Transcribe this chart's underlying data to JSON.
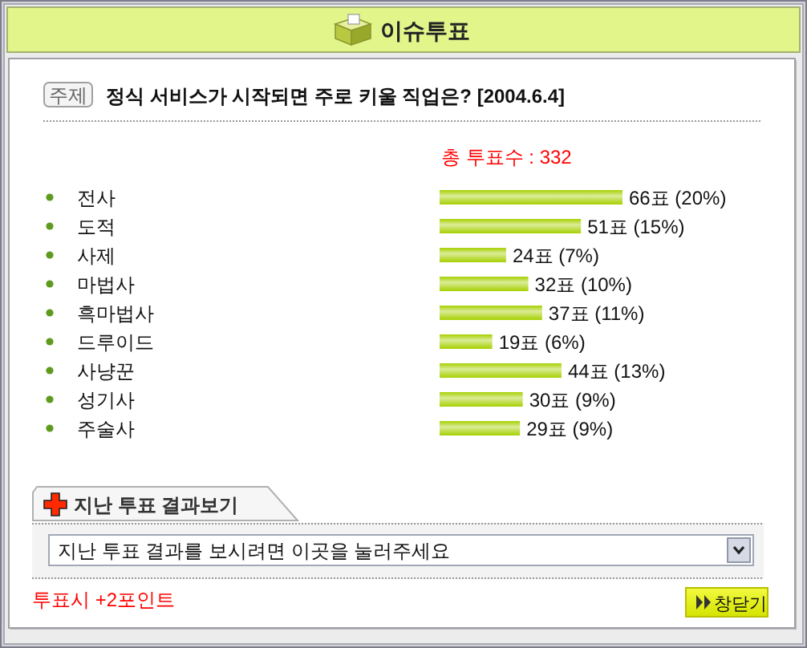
{
  "chart_data": {
    "type": "bar",
    "orientation": "horizontal",
    "title": "이슈투표",
    "subtitle": "정식 서비스가 시작되면 주로 키울 직업은? [2004.6.4]",
    "categories": [
      "전사",
      "도적",
      "사제",
      "마법사",
      "흑마법사",
      "드루이드",
      "사냥꾼",
      "성기사",
      "주술사"
    ],
    "values": [
      66,
      51,
      24,
      32,
      37,
      19,
      44,
      30,
      29
    ],
    "value_labels": [
      "66표 (20%)",
      "51표 (15%)",
      "24표 (7%)",
      "32표 (10%)",
      "37표 (11%)",
      "19표 (6%)",
      "44표 (13%)",
      "30표 (9%)",
      "29표 (9%)"
    ],
    "color": "#a6d000",
    "annotations": [
      "주제",
      "총 투표수 : 332",
      "지난 투표 결과보기",
      "지난 투표 결과를 보시려면 이곳을 눌러주세요",
      "투표시 +2포인트",
      "창닫기"
    ]
  }
}
